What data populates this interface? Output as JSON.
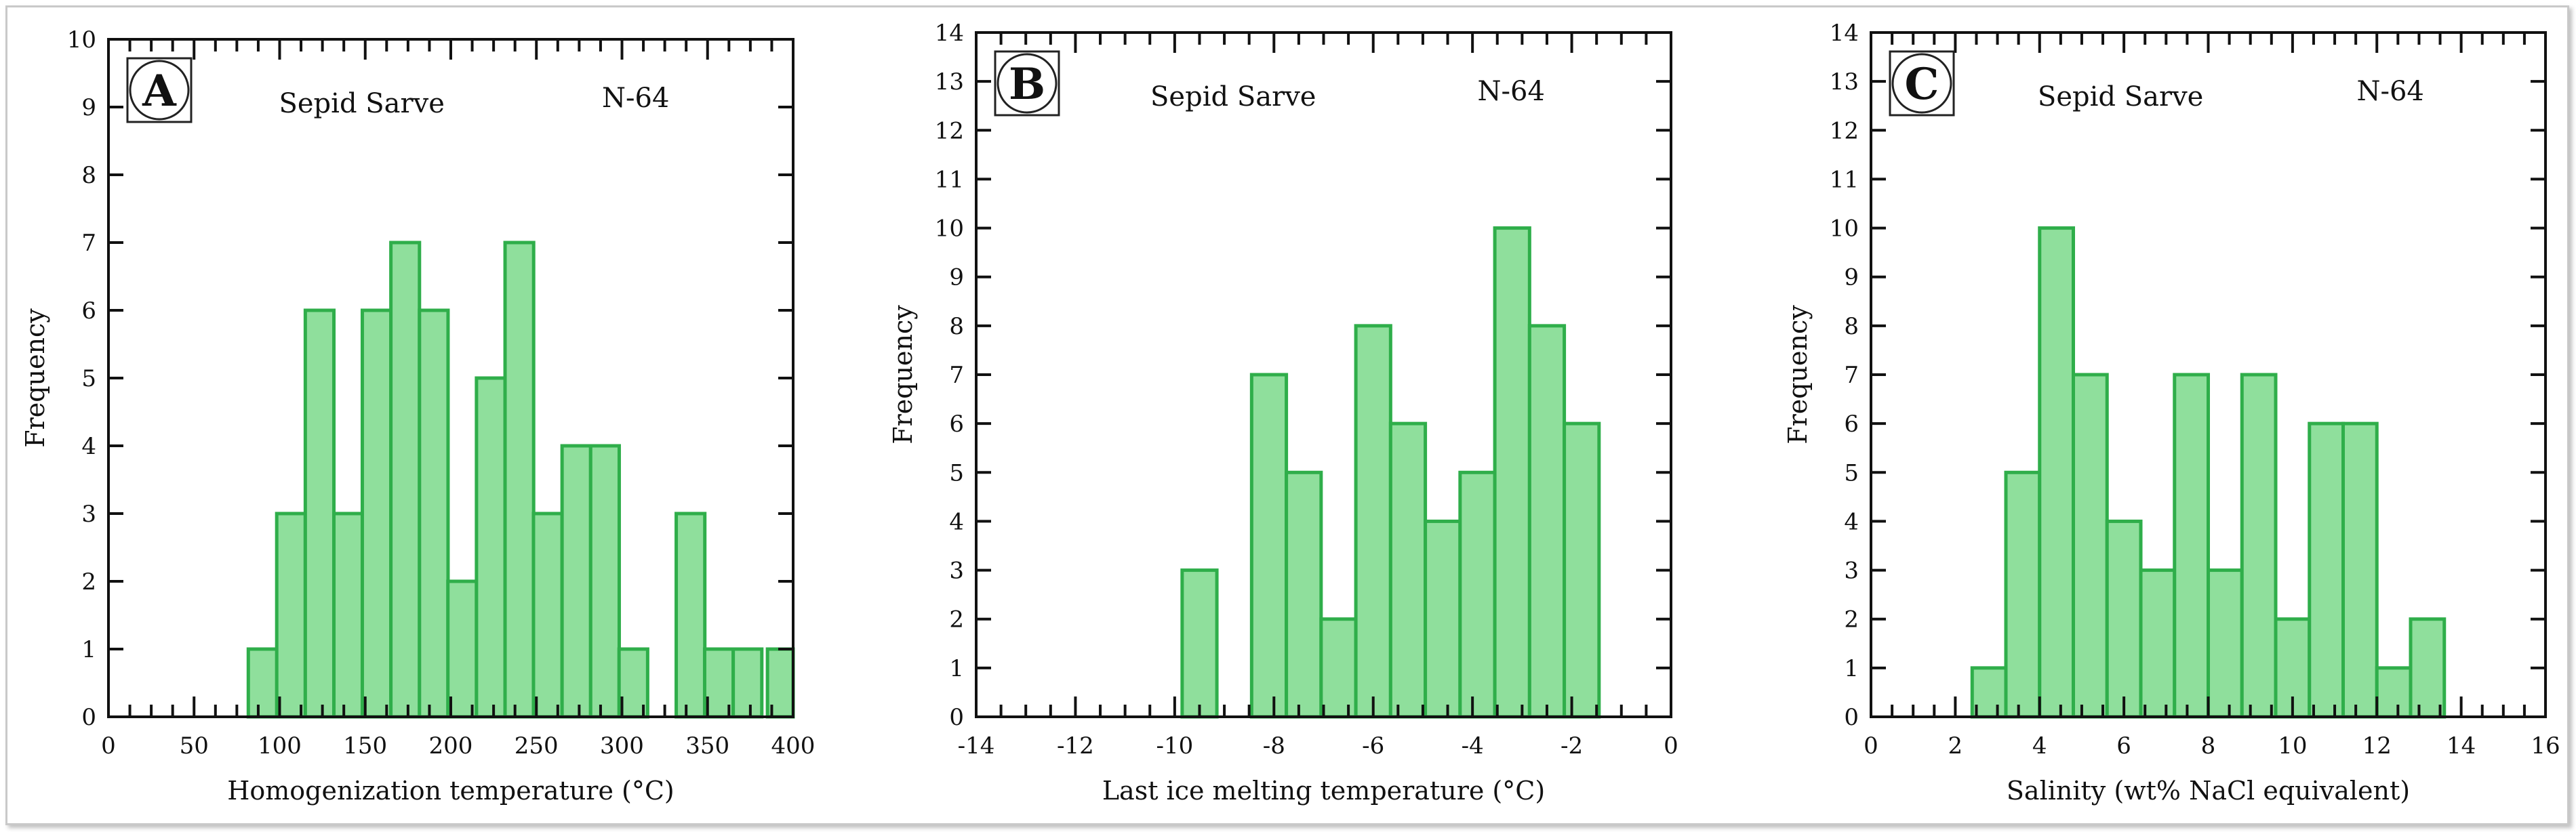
{
  "chart_data": [
    {
      "type": "bar",
      "panel_label": "A",
      "title": "Sepid Sarve",
      "annotation": "N-64",
      "xlabel": "Homogenization temperature (°C)",
      "ylabel": "Frequency",
      "xlim": [
        0,
        400
      ],
      "ylim": [
        0,
        10
      ],
      "x_ticks": [
        0,
        50,
        100,
        150,
        200,
        250,
        300,
        350,
        400
      ],
      "x_minor_step": 12.5,
      "y_ticks": [
        0,
        1,
        2,
        3,
        4,
        5,
        6,
        7,
        8,
        9,
        10
      ],
      "bin_width": 16.7,
      "bin_starts": [
        81.7,
        98.3,
        115,
        131.7,
        148.3,
        165,
        181.7,
        198.3,
        215,
        231.7,
        248.3,
        265,
        281.7,
        298.3,
        315,
        331.7,
        348.3,
        365,
        381.7
      ],
      "values": [
        1,
        3,
        6,
        3,
        6,
        7,
        6,
        2,
        5,
        7,
        3,
        4,
        4,
        1,
        0,
        3,
        1,
        1,
        0
      ],
      "extra_bins": [
        {
          "start": 385,
          "width": 16.7,
          "value": 1
        }
      ],
      "colors": {
        "fill": "#8fdf9c",
        "stroke": "#2fae4a"
      }
    },
    {
      "type": "bar",
      "panel_label": "B",
      "title": "Sepid Sarve",
      "annotation": "N-64",
      "xlabel": "Last ice melting temperature (°C)",
      "ylabel": "Frequency",
      "xlim": [
        -14,
        0
      ],
      "ylim": [
        0,
        14
      ],
      "x_ticks": [
        -14,
        -12,
        -10,
        -8,
        -6,
        -4,
        -2,
        0
      ],
      "x_minor_step": 0.5,
      "y_ticks": [
        0,
        1,
        2,
        3,
        4,
        5,
        6,
        7,
        8,
        9,
        10,
        11,
        12,
        13,
        14
      ],
      "bin_width": 0.7,
      "bin_starts": [
        -9.85,
        -8.45,
        -7.75,
        -7.05,
        -6.35,
        -5.65,
        -4.95,
        -4.25,
        -3.55,
        -2.85,
        -2.15
      ],
      "values": [
        3,
        7,
        5,
        2,
        8,
        6,
        4,
        5,
        10,
        8,
        6
      ],
      "colors": {
        "fill": "#8fdf9c",
        "stroke": "#2fae4a"
      }
    },
    {
      "type": "bar",
      "panel_label": "C",
      "title": "Sepid Sarve",
      "annotation": "N-64",
      "xlabel": "Salinity (wt% NaCl equivalent)",
      "ylabel": "Frequency",
      "xlim": [
        0,
        16
      ],
      "ylim": [
        0,
        14
      ],
      "x_ticks": [
        0,
        2,
        4,
        6,
        8,
        10,
        12,
        14,
        16
      ],
      "x_minor_step": 0.5,
      "y_ticks": [
        0,
        1,
        2,
        3,
        4,
        5,
        6,
        7,
        8,
        9,
        10,
        11,
        12,
        13,
        14
      ],
      "bin_width": 0.8,
      "bin_starts": [
        2.4,
        3.2,
        4.0,
        4.8,
        5.6,
        6.4,
        7.2,
        8.0,
        8.8,
        9.6,
        10.4,
        11.2,
        12.0,
        12.8
      ],
      "values": [
        1,
        5,
        10,
        7,
        4,
        3,
        7,
        3,
        7,
        2,
        6,
        6,
        1,
        2
      ],
      "colors": {
        "fill": "#8fdf9c",
        "stroke": "#2fae4a"
      }
    }
  ]
}
